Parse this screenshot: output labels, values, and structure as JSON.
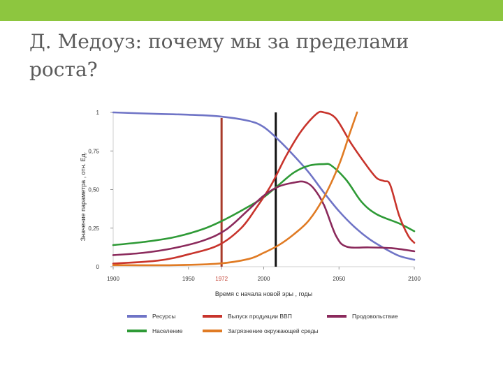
{
  "slide": {
    "title": "Д. Медоуз: почему мы за пределами роста?"
  },
  "colors": {
    "top_bar": "#8dc63f",
    "resource": "#6f74c6",
    "gdp": "#c8342c",
    "food": "#8b2a5c",
    "population": "#2e9a36",
    "pollution": "#e07b24",
    "marker_1972": "#a83a2a",
    "marker_2008": "#111111"
  },
  "chart_data": {
    "type": "line",
    "xlabel": "Время с начала новой эры , годы",
    "ylabel": "Значение параметра , отн. Ед.",
    "xlim": [
      1900,
      2100
    ],
    "ylim": [
      0,
      1
    ],
    "x_ticks": [
      "1900",
      "1950",
      "1972",
      "2000",
      "2050",
      "2100"
    ],
    "y_ticks": [
      "0",
      "0,25",
      "0,50",
      "0,75",
      "1"
    ],
    "grid": false,
    "legend_position": "bottom",
    "vertical_markers": [
      {
        "x": 1972,
        "color": "#a83a2a"
      },
      {
        "x": 2008,
        "color": "#111111"
      }
    ],
    "series": [
      {
        "name": "Ресурсы",
        "color": "#6f74c6",
        "points": [
          [
            1900,
            1.0
          ],
          [
            1930,
            0.99
          ],
          [
            1950,
            0.985
          ],
          [
            1970,
            0.975
          ],
          [
            1990,
            0.945
          ],
          [
            2000,
            0.905
          ],
          [
            2010,
            0.82
          ],
          [
            2020,
            0.72
          ],
          [
            2030,
            0.61
          ],
          [
            2040,
            0.48
          ],
          [
            2050,
            0.36
          ],
          [
            2060,
            0.26
          ],
          [
            2070,
            0.18
          ],
          [
            2080,
            0.12
          ],
          [
            2090,
            0.07
          ],
          [
            2100,
            0.045
          ]
        ]
      },
      {
        "name": "Население",
        "color": "#2e9a36",
        "points": [
          [
            1900,
            0.14
          ],
          [
            1920,
            0.16
          ],
          [
            1940,
            0.19
          ],
          [
            1960,
            0.245
          ],
          [
            1975,
            0.31
          ],
          [
            1990,
            0.39
          ],
          [
            2000,
            0.45
          ],
          [
            2010,
            0.53
          ],
          [
            2020,
            0.61
          ],
          [
            2030,
            0.655
          ],
          [
            2040,
            0.665
          ],
          [
            2045,
            0.655
          ],
          [
            2055,
            0.56
          ],
          [
            2065,
            0.42
          ],
          [
            2075,
            0.34
          ],
          [
            2090,
            0.28
          ],
          [
            2100,
            0.23
          ]
        ]
      },
      {
        "name": "Выпуск продукции ВВП",
        "color": "#c8342c",
        "points": [
          [
            1900,
            0.02
          ],
          [
            1930,
            0.04
          ],
          [
            1950,
            0.08
          ],
          [
            1970,
            0.14
          ],
          [
            1985,
            0.25
          ],
          [
            1995,
            0.38
          ],
          [
            2005,
            0.53
          ],
          [
            2015,
            0.72
          ],
          [
            2025,
            0.88
          ],
          [
            2035,
            0.99
          ],
          [
            2040,
            1.0
          ],
          [
            2048,
            0.96
          ],
          [
            2058,
            0.8
          ],
          [
            2068,
            0.66
          ],
          [
            2075,
            0.575
          ],
          [
            2080,
            0.555
          ],
          [
            2084,
            0.53
          ],
          [
            2090,
            0.33
          ],
          [
            2096,
            0.2
          ],
          [
            2100,
            0.155
          ]
        ]
      },
      {
        "name": "Продовольствие",
        "color": "#8b2a5c",
        "points": [
          [
            1900,
            0.075
          ],
          [
            1920,
            0.09
          ],
          [
            1940,
            0.12
          ],
          [
            1960,
            0.17
          ],
          [
            1975,
            0.24
          ],
          [
            1990,
            0.37
          ],
          [
            2000,
            0.46
          ],
          [
            2010,
            0.52
          ],
          [
            2020,
            0.545
          ],
          [
            2027,
            0.55
          ],
          [
            2033,
            0.51
          ],
          [
            2040,
            0.4
          ],
          [
            2048,
            0.2
          ],
          [
            2055,
            0.13
          ],
          [
            2070,
            0.125
          ],
          [
            2085,
            0.12
          ],
          [
            2100,
            0.1
          ]
        ]
      },
      {
        "name": "Загрязнение окружающей среды",
        "color": "#e07b24",
        "points": [
          [
            1900,
            0.01
          ],
          [
            1940,
            0.01
          ],
          [
            1970,
            0.02
          ],
          [
            1990,
            0.05
          ],
          [
            2000,
            0.09
          ],
          [
            2010,
            0.14
          ],
          [
            2020,
            0.21
          ],
          [
            2030,
            0.3
          ],
          [
            2040,
            0.45
          ],
          [
            2050,
            0.66
          ],
          [
            2057,
            0.86
          ],
          [
            2062,
            1.0
          ]
        ]
      }
    ]
  }
}
